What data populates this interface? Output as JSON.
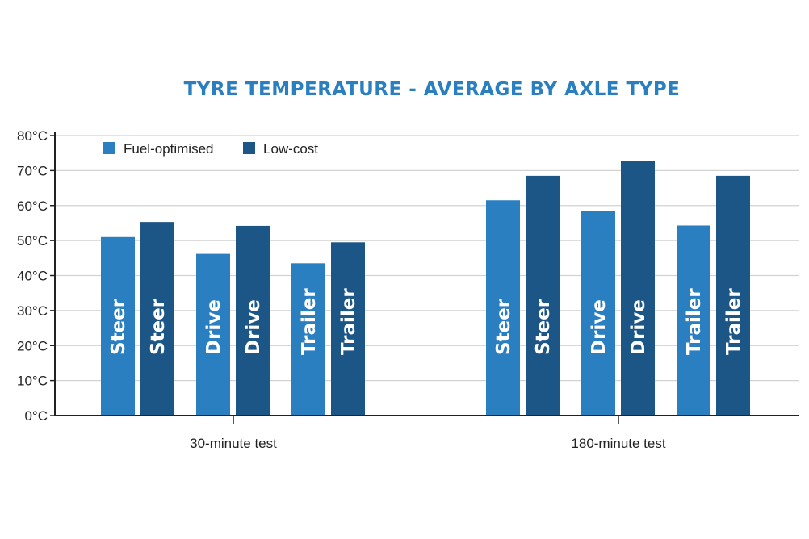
{
  "chart_data": {
    "type": "bar",
    "title": "TYRE TEMPERATURE - AVERAGE BY AXLE TYPE",
    "groups": [
      "30-minute test",
      "180-minute test"
    ],
    "y_ticks": [
      "0°C",
      "10°C",
      "20°C",
      "30°C",
      "40°C",
      "50°C",
      "60°C",
      "70°C",
      "80°C"
    ],
    "ylim": [
      0,
      80
    ],
    "grid": true,
    "legend_position": "top-left",
    "series": [
      {
        "name": "Fuel-optimised",
        "color": "#2a7fc0"
      },
      {
        "name": "Low-cost",
        "color": "#1c5687"
      }
    ],
    "bars": [
      {
        "group": "30-minute test",
        "series": "Fuel-optimised",
        "label": "Steer",
        "value": 51
      },
      {
        "group": "30-minute test",
        "series": "Low-cost",
        "label": "Steer",
        "value": 55.3
      },
      {
        "group": "30-minute test",
        "series": "Fuel-optimised",
        "label": "Drive",
        "value": 46.2
      },
      {
        "group": "30-minute test",
        "series": "Low-cost",
        "label": "Drive",
        "value": 54.2
      },
      {
        "group": "30-minute test",
        "series": "Fuel-optimised",
        "label": "Trailer",
        "value": 43.5
      },
      {
        "group": "30-minute test",
        "series": "Low-cost",
        "label": "Trailer",
        "value": 49.5
      },
      {
        "group": "180-minute test",
        "series": "Fuel-optimised",
        "label": "Steer",
        "value": 61.5
      },
      {
        "group": "180-minute test",
        "series": "Low-cost",
        "label": "Steer",
        "value": 68.5
      },
      {
        "group": "180-minute test",
        "series": "Fuel-optimised",
        "label": "Drive",
        "value": 58.5
      },
      {
        "group": "180-minute test",
        "series": "Low-cost",
        "label": "Drive",
        "value": 72.8
      },
      {
        "group": "180-minute test",
        "series": "Fuel-optimised",
        "label": "Trailer",
        "value": 54.3
      },
      {
        "group": "180-minute test",
        "series": "Low-cost",
        "label": "Trailer",
        "value": 68.5
      }
    ]
  }
}
